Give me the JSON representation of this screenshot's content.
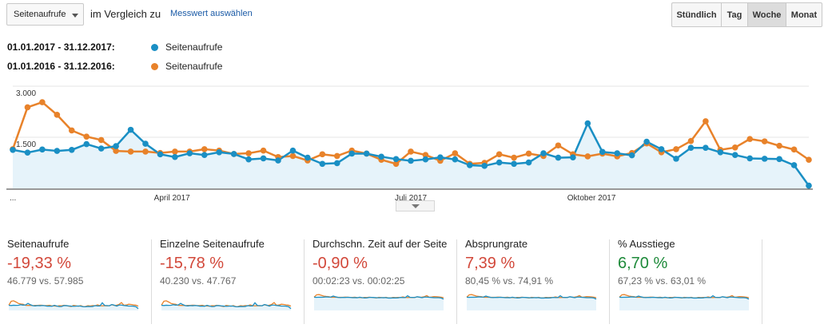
{
  "toolbar": {
    "metric_select": "Seitenaufrufe",
    "compare_text": "im Vergleich zu",
    "select_metric_link": "Messwert auswählen",
    "granularity": [
      "Stündlich",
      "Tag",
      "Woche",
      "Monat"
    ],
    "granularity_active": "Woche"
  },
  "legend": [
    {
      "range": "01.01.2017 - 31.12.2017:",
      "label": "Seitenaufrufe",
      "color": "#1a8fc4"
    },
    {
      "range": "01.01.2016 - 31.12.2016:",
      "label": "Seitenaufrufe",
      "color": "#e8822a"
    }
  ],
  "chart_data": {
    "type": "line",
    "y_ticks": [
      "3.000",
      "1.500"
    ],
    "ylim": [
      0,
      3000
    ],
    "x_tick_labels": [
      "...",
      "April 2017",
      "Juli 2017",
      "Oktober 2017"
    ],
    "grid": true,
    "series": [
      {
        "name": "Seitenaufrufe",
        "color": "#1a8fc4",
        "values": [
          1130,
          1050,
          1140,
          1100,
          1130,
          1300,
          1170,
          1240,
          1720,
          1310,
          1000,
          920,
          1030,
          980,
          1060,
          1010,
          850,
          880,
          820,
          1110,
          900,
          720,
          740,
          1020,
          1020,
          930,
          860,
          810,
          850,
          910,
          850,
          680,
          660,
          760,
          720,
          760,
          1030,
          900,
          910,
          1910,
          1070,
          1030,
          970,
          1370,
          1150,
          870,
          1190,
          1190,
          1060,
          980,
          880,
          870,
          860,
          680,
          80
        ]
      },
      {
        "name": "Seitenaufrufe",
        "color": "#e8822a",
        "values": [
          1150,
          2380,
          2530,
          2160,
          1700,
          1520,
          1420,
          1100,
          1080,
          1080,
          1040,
          1080,
          1080,
          1150,
          1110,
          1010,
          1030,
          1110,
          920,
          950,
          820,
          1000,
          950,
          1110,
          1020,
          840,
          720,
          1080,
          980,
          810,
          1030,
          720,
          750,
          1000,
          900,
          1020,
          950,
          1260,
          1000,
          940,
          1020,
          940,
          1040,
          1320,
          1060,
          1150,
          1390,
          1970,
          1130,
          1200,
          1450,
          1380,
          1250,
          1140,
          840
        ]
      }
    ]
  },
  "cards": [
    {
      "title": "Seitenaufrufe",
      "delta": "-19,33 %",
      "delta_color": "#d2483a",
      "comparison": "46.779 vs. 57.985"
    },
    {
      "title": "Einzelne Seitenaufrufe",
      "delta": "-15,78 %",
      "delta_color": "#d2483a",
      "comparison": "40.230 vs. 47.767"
    },
    {
      "title": "Durchschn. Zeit auf der Seite",
      "delta": "-0,90 %",
      "delta_color": "#d2483a",
      "comparison": "00:02:23 vs. 00:02:25"
    },
    {
      "title": "Absprungrate",
      "delta": "7,39 %",
      "delta_color": "#d2483a",
      "comparison": "80,45 % vs. 74,91 %"
    },
    {
      "title": "% Ausstiege",
      "delta": "6,70 %",
      "delta_color": "#1e8a3a",
      "comparison": "67,23 % vs. 63,01 %"
    }
  ]
}
